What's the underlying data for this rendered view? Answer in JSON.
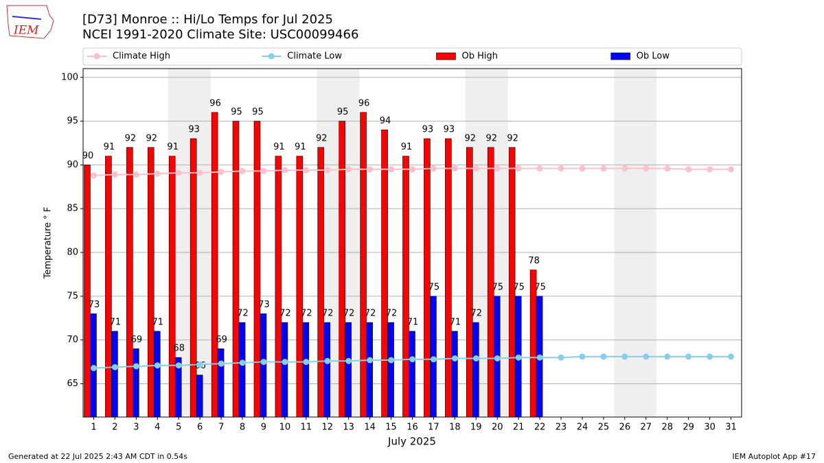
{
  "logo_text": "IEM",
  "footer_left": "Generated at 22 Jul 2025 2:43 AM CDT in 0.54s",
  "footer_right": "IEM Autoplot App #17",
  "chart_data": {
    "type": "bar",
    "title": "[D73] Monroe :: Hi/Lo Temps for Jul 2025",
    "subtitle": "NCEI 1991-2020 Climate Site: USC00099466",
    "x_label": "July 2025",
    "y_label": "Temperature ° F",
    "x": [
      1,
      2,
      3,
      4,
      5,
      6,
      7,
      8,
      9,
      10,
      11,
      12,
      13,
      14,
      15,
      16,
      17,
      18,
      19,
      20,
      21,
      22,
      23,
      24,
      25,
      26,
      27,
      28,
      29,
      30,
      31
    ],
    "xlim": [
      0.5,
      31.5
    ],
    "xticks": [
      1,
      2,
      3,
      4,
      5,
      6,
      7,
      8,
      9,
      10,
      11,
      12,
      13,
      14,
      15,
      16,
      17,
      18,
      19,
      20,
      21,
      22,
      23,
      24,
      25,
      26,
      27,
      28,
      29,
      30,
      31
    ],
    "ylim": [
      61.2,
      101
    ],
    "yticks": [
      65,
      70,
      75,
      80,
      85,
      90,
      95,
      100
    ],
    "grid": true,
    "shaded_ranges": [
      [
        4.5,
        6.5
      ],
      [
        11.5,
        13.5
      ],
      [
        18.5,
        20.5
      ],
      [
        25.5,
        27.5
      ]
    ],
    "shade_color": "#efefef",
    "legend": "top",
    "series": [
      {
        "name": "Climate High",
        "type": "line",
        "color": "#ffc0cb",
        "values": [
          88.8,
          88.9,
          88.9,
          89.0,
          89.1,
          89.1,
          89.2,
          89.3,
          89.3,
          89.4,
          89.4,
          89.4,
          89.5,
          89.5,
          89.5,
          89.5,
          89.6,
          89.6,
          89.6,
          89.6,
          89.6,
          89.6,
          89.6,
          89.6,
          89.6,
          89.6,
          89.6,
          89.6,
          89.5,
          89.5,
          89.5
        ]
      },
      {
        "name": "Climate Low",
        "type": "line",
        "color": "#87ceeb",
        "values": [
          66.8,
          66.9,
          67.0,
          67.1,
          67.1,
          67.2,
          67.3,
          67.4,
          67.5,
          67.5,
          67.5,
          67.6,
          67.6,
          67.7,
          67.7,
          67.8,
          67.8,
          67.9,
          67.9,
          67.9,
          68.0,
          68.0,
          68.0,
          68.1,
          68.1,
          68.1,
          68.1,
          68.1,
          68.1,
          68.1,
          68.1
        ]
      },
      {
        "name": "Ob High",
        "type": "bar",
        "color": "#ff0000",
        "values": [
          90,
          91,
          92,
          92,
          91,
          93,
          96,
          95,
          95,
          91,
          91,
          92,
          95,
          96,
          94,
          91,
          93,
          93,
          92,
          92,
          92,
          78,
          null,
          null,
          null,
          null,
          null,
          null,
          null,
          null,
          null
        ]
      },
      {
        "name": "Ob Low",
        "type": "bar",
        "color": "#0000ff",
        "values": [
          73,
          71,
          69,
          71,
          68,
          66,
          69,
          72,
          73,
          72,
          72,
          72,
          72,
          72,
          72,
          71,
          75,
          71,
          72,
          75,
          75,
          75,
          null,
          null,
          null,
          null,
          null,
          null,
          null,
          null,
          null
        ]
      }
    ]
  }
}
